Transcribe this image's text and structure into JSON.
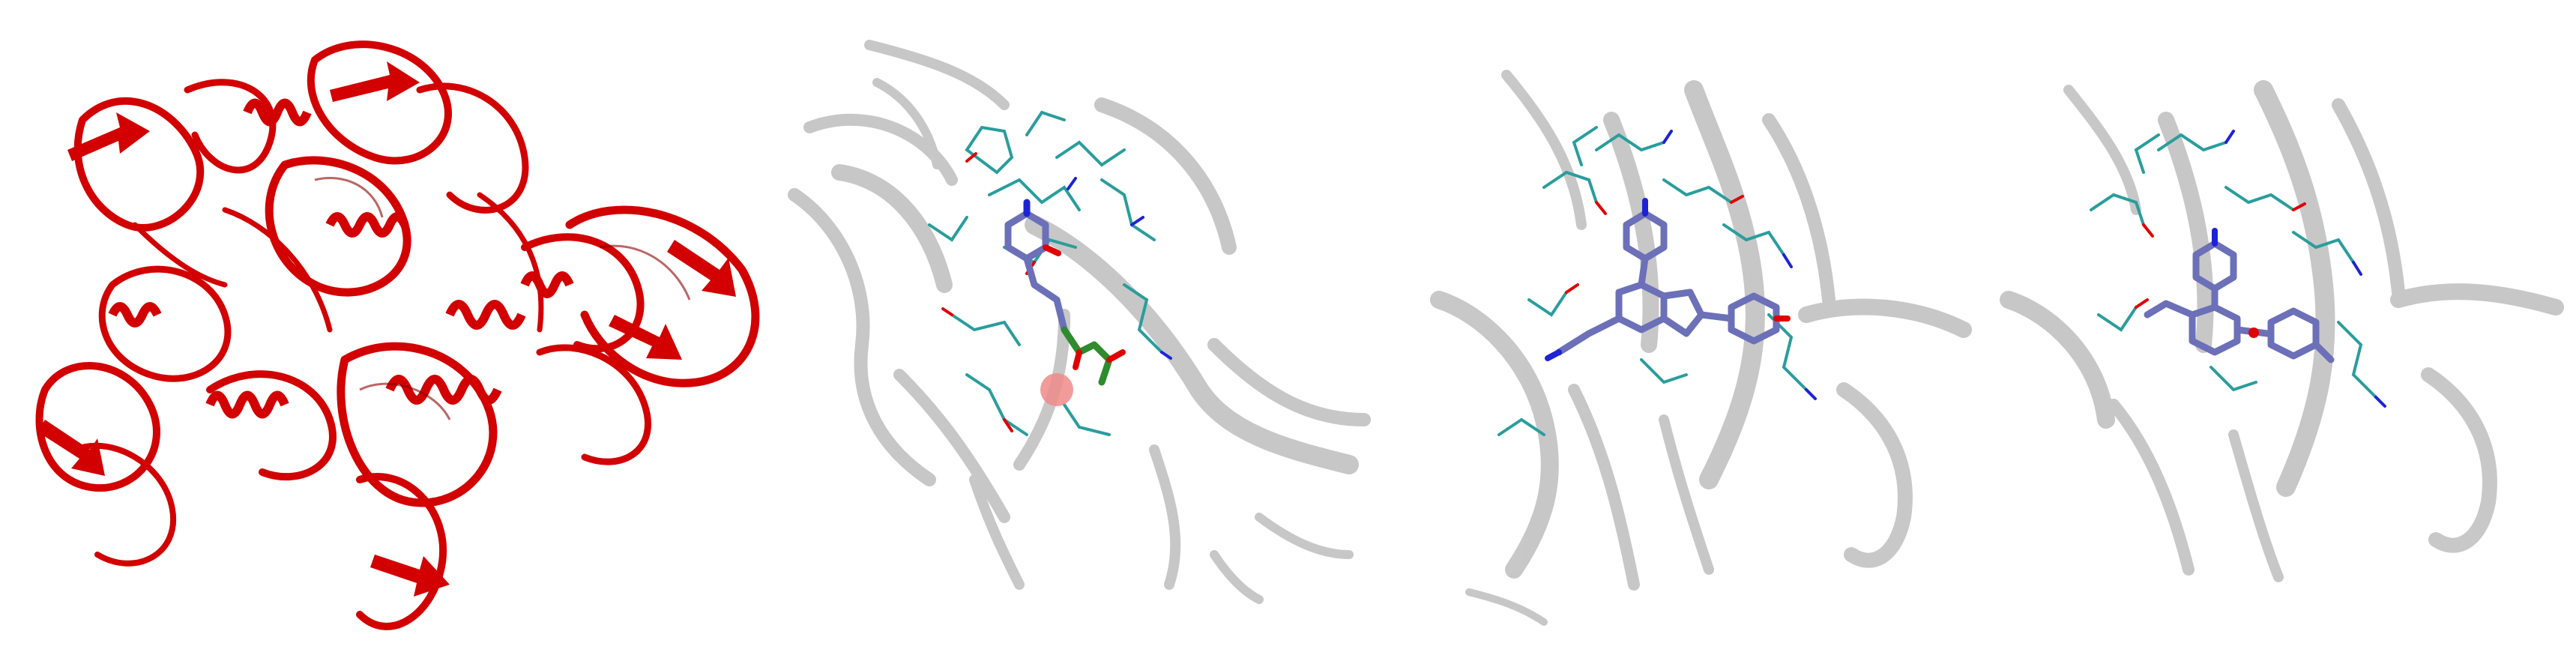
{
  "figure": {
    "panels": [
      {
        "id": "panel-1",
        "subject": "protein-ribbon-overview"
      },
      {
        "id": "panel-2",
        "subject": "binding-site-with-ligand-and-ion"
      },
      {
        "id": "panel-3",
        "subject": "binding-site-with-inhibitor-a"
      },
      {
        "id": "panel-4",
        "subject": "binding-site-with-inhibitor-b"
      }
    ]
  },
  "colors": {
    "protein_ribbon": "#d20000",
    "protein_ribbon_dark": "#8e0000",
    "transparent_cartoon": "#9a9a9a",
    "residue_sticks": "#2a9d9d",
    "oxygen": "#e00000",
    "nitrogen": "#1e22d6",
    "ligand": "#6b70b8",
    "phosphorus": "#2e8b2e",
    "ion_sphere": "#f08a8a"
  }
}
